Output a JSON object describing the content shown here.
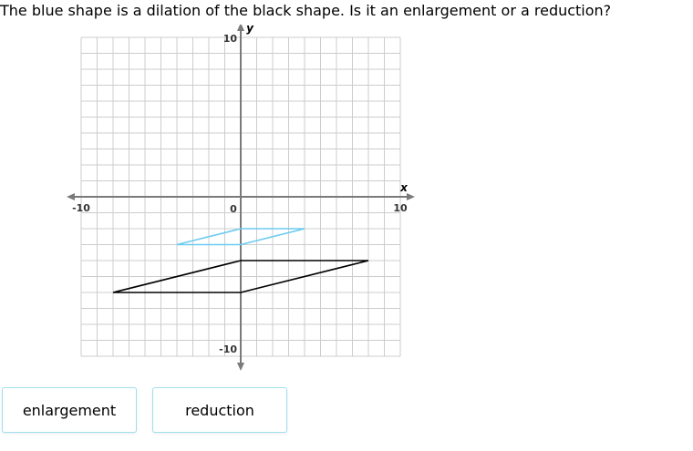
{
  "question": {
    "text": "The blue shape is a dilation of the black shape. Is it an enlargement or a reduction?"
  },
  "graph": {
    "x_label": "x",
    "y_label": "y",
    "tick_labels": {
      "x_min": "-10",
      "x_max": "10",
      "y_max": "10",
      "y_min": "-10",
      "origin": "0"
    },
    "x_range": [
      -10,
      10
    ],
    "y_range": [
      -10,
      10
    ],
    "grid": true,
    "grid_step": 1,
    "shapes": [
      {
        "name": "blue-shape",
        "color": "#6ccbf0",
        "points": [
          [
            0,
            -2
          ],
          [
            4,
            -2
          ],
          [
            0,
            -3
          ],
          [
            -4,
            -3
          ]
        ]
      },
      {
        "name": "black-shape",
        "color": "#000000",
        "points": [
          [
            0,
            -4
          ],
          [
            8,
            -4
          ],
          [
            0,
            -6
          ],
          [
            -8,
            -6
          ]
        ]
      }
    ],
    "colors": {
      "grid": "#cccccc",
      "axis": "#7a7a7a",
      "label": "#333333"
    }
  },
  "answers": {
    "enlargement_label": "enlargement",
    "reduction_label": "reduction"
  }
}
